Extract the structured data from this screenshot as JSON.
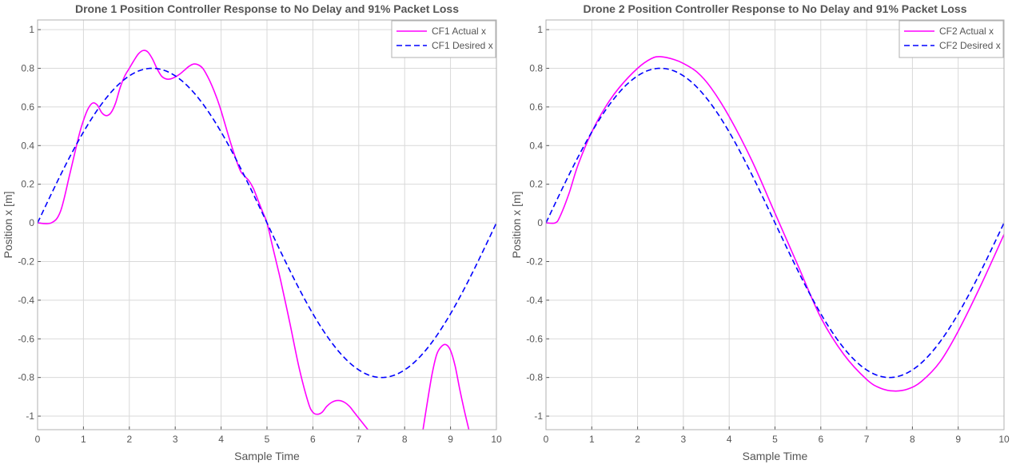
{
  "chart_data": [
    {
      "type": "line",
      "title": "Drone 1 Position Controller Response to No Delay and 91% Packet Loss",
      "xlabel": "Sample Time",
      "ylabel": "Position x [m]",
      "xlim": [
        0,
        10
      ],
      "ylim": [
        -1.07,
        1.05
      ],
      "xticks": [
        0,
        1,
        2,
        3,
        4,
        5,
        6,
        7,
        8,
        9,
        10
      ],
      "yticks": [
        -1,
        -0.8,
        -0.6,
        -0.4,
        -0.2,
        0,
        0.2,
        0.4,
        0.6,
        0.8,
        1
      ],
      "grid": true,
      "legend_position": "top-right",
      "series": [
        {
          "name": "CF1 Actual x",
          "color": "#ff00ff",
          "dash": "solid",
          "x": [
            0,
            0.3,
            0.5,
            0.7,
            0.9,
            1.0,
            1.1,
            1.2,
            1.3,
            1.4,
            1.5,
            1.6,
            1.7,
            1.8,
            1.9,
            2.0,
            2.1,
            2.2,
            2.3,
            2.4,
            2.5,
            2.6,
            2.7,
            2.8,
            2.9,
            3.0,
            3.1,
            3.2,
            3.3,
            3.4,
            3.5,
            3.6,
            3.7,
            3.8,
            3.9,
            4.0,
            4.2,
            4.4,
            4.5,
            4.6,
            4.7,
            4.8,
            4.9,
            5.0,
            5.1,
            5.2,
            5.3,
            5.5,
            5.7,
            5.9,
            6.0,
            6.1,
            6.2,
            6.3,
            6.4,
            6.5,
            6.6,
            6.7,
            6.8,
            6.9,
            7.0,
            7.2
          ],
          "y": [
            0,
            0,
            0.06,
            0.25,
            0.45,
            0.53,
            0.59,
            0.62,
            0.61,
            0.57,
            0.555,
            0.57,
            0.62,
            0.7,
            0.76,
            0.8,
            0.84,
            0.875,
            0.892,
            0.885,
            0.85,
            0.8,
            0.76,
            0.745,
            0.745,
            0.755,
            0.77,
            0.79,
            0.81,
            0.822,
            0.818,
            0.8,
            0.76,
            0.71,
            0.65,
            0.58,
            0.42,
            0.28,
            0.245,
            0.22,
            0.18,
            0.12,
            0.06,
            0,
            -0.1,
            -0.2,
            -0.3,
            -0.52,
            -0.75,
            -0.93,
            -0.98,
            -0.99,
            -0.98,
            -0.95,
            -0.93,
            -0.92,
            -0.92,
            -0.93,
            -0.95,
            -0.98,
            -1.01,
            -1.07
          ]
        },
        {
          "name": "",
          "color": "#ff00ff",
          "dash": "solid",
          "x": [
            8.4,
            8.5,
            8.6,
            8.7,
            8.8,
            8.9,
            9.0,
            9.1,
            9.2,
            9.3,
            9.4
          ],
          "y": [
            -1.07,
            -0.92,
            -0.78,
            -0.68,
            -0.64,
            -0.63,
            -0.66,
            -0.74,
            -0.86,
            -0.97,
            -1.07
          ]
        },
        {
          "name": "CF1 Desired x",
          "color": "#0000ff",
          "dash": "dashed",
          "function": "0.8*sin(2*pi*x/10)",
          "x_range": [
            0,
            10
          ]
        }
      ]
    },
    {
      "type": "line",
      "title": "Drone 2 Position Controller Response to No Delay and 91% Packet Loss",
      "xlabel": "Sample Time",
      "ylabel": "Position x [m]",
      "xlim": [
        0,
        10
      ],
      "ylim": [
        -1.07,
        1.05
      ],
      "xticks": [
        0,
        1,
        2,
        3,
        4,
        5,
        6,
        7,
        8,
        9,
        10
      ],
      "yticks": [
        -1,
        -0.8,
        -0.6,
        -0.4,
        -0.2,
        0,
        0.2,
        0.4,
        0.6,
        0.8,
        1
      ],
      "grid": true,
      "legend_position": "top-right",
      "series": [
        {
          "name": "CF2 Actual x",
          "color": "#ff00ff",
          "dash": "solid",
          "x": [
            0,
            0.2,
            0.3,
            0.5,
            0.7,
            1.0,
            1.3,
            1.6,
            2.0,
            2.3,
            2.5,
            2.8,
            3.0,
            3.3,
            3.6,
            4.0,
            4.5,
            5.0,
            5.5,
            6.0,
            6.5,
            7.0,
            7.3,
            7.6,
            7.9,
            8.2,
            8.6,
            9.0,
            9.5,
            10.0
          ],
          "y": [
            0,
            0,
            0.03,
            0.15,
            0.3,
            0.47,
            0.6,
            0.7,
            0.8,
            0.85,
            0.86,
            0.845,
            0.825,
            0.78,
            0.7,
            0.55,
            0.32,
            0.05,
            -0.22,
            -0.49,
            -0.68,
            -0.81,
            -0.855,
            -0.87,
            -0.86,
            -0.82,
            -0.72,
            -0.56,
            -0.32,
            -0.06
          ]
        },
        {
          "name": "CF2 Desired x",
          "color": "#0000ff",
          "dash": "dashed",
          "function": "0.8*sin(2*pi*x/10)",
          "x_range": [
            0,
            10
          ]
        }
      ]
    }
  ]
}
